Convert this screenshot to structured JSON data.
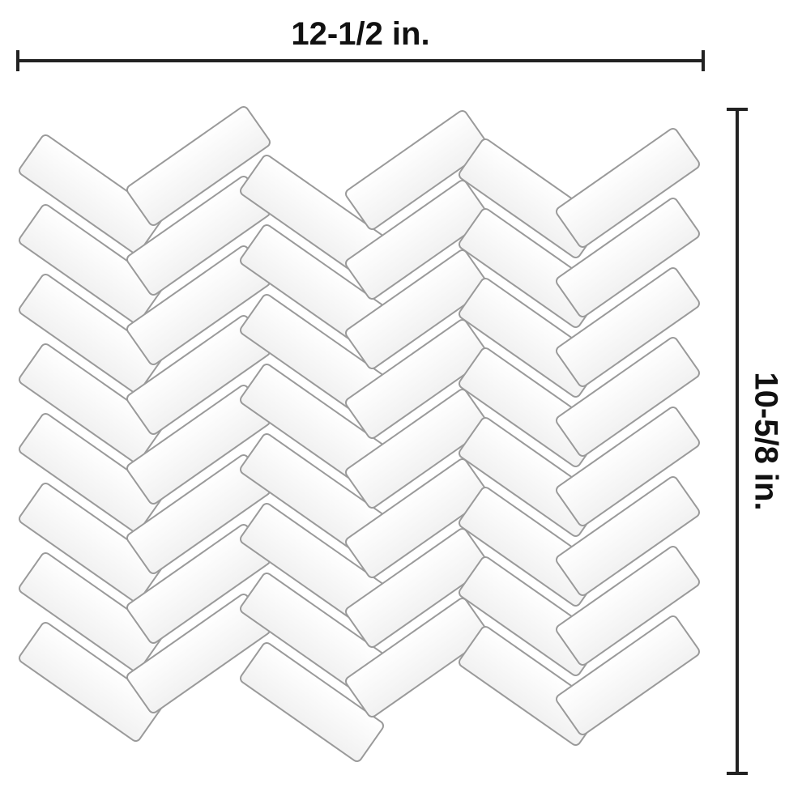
{
  "dimensions": {
    "width_label": "12-1/2 in.",
    "height_label": "10-5/8 in."
  },
  "product": {
    "pattern": "herringbone",
    "tile_color": "#ffffff",
    "grout_color": "#9a9a9a",
    "dimension_line_color": "#222222"
  }
}
